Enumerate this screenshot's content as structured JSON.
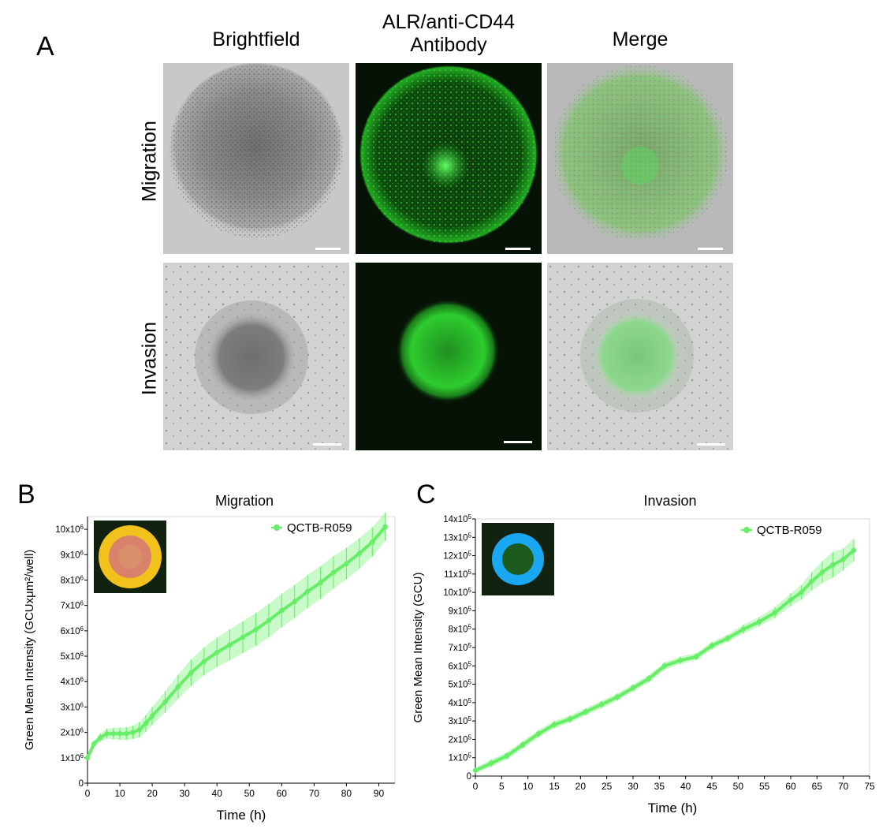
{
  "panel_a": {
    "letter": "A",
    "columns": [
      "Brightfield",
      "ALR/anti-CD44\nAntibody",
      "Merge"
    ],
    "rows": [
      "Migration",
      "Invasion"
    ]
  },
  "colors": {
    "series": "#66ee66",
    "series_dark": "#44dd44",
    "fluor": "#22dd22",
    "brightfield_bg": "#c8c8c8",
    "dark_bg": "#061206",
    "heat_outer": "#f1c21b",
    "heat_inner": "#d9826b",
    "invasion_mask": "#1aa7f2"
  },
  "chart_data": [
    {
      "panel_letter": "B",
      "type": "line",
      "title": "Migration",
      "xlabel": "Time (h)",
      "ylabel": "Green Mean Intensity (GCUxμm²/well)",
      "xlim": [
        0,
        95
      ],
      "ylim": [
        0,
        10500000
      ],
      "x_ticks": [
        0,
        10,
        20,
        30,
        40,
        50,
        60,
        70,
        80,
        90
      ],
      "y_ticks": [
        {
          "v": 0,
          "label": "0"
        },
        {
          "v": 1000000,
          "label": "1x10^6"
        },
        {
          "v": 2000000,
          "label": "2x10^6"
        },
        {
          "v": 3000000,
          "label": "3x10^6"
        },
        {
          "v": 4000000,
          "label": "4x10^6"
        },
        {
          "v": 5000000,
          "label": "5x10^6"
        },
        {
          "v": 6000000,
          "label": "6x10^6"
        },
        {
          "v": 7000000,
          "label": "7x10^6"
        },
        {
          "v": 8000000,
          "label": "8x10^6"
        },
        {
          "v": 9000000,
          "label": "9x10^6"
        },
        {
          "v": 10000000,
          "label": "10x10^6"
        }
      ],
      "legend": "top-right",
      "grid": false,
      "inset": "heatmap",
      "series": [
        {
          "name": "QCTB-R059",
          "x": [
            0,
            2,
            4,
            6,
            8,
            10,
            12,
            14,
            16,
            18,
            20,
            24,
            28,
            32,
            36,
            40,
            44,
            48,
            52,
            56,
            60,
            64,
            68,
            72,
            76,
            80,
            84,
            88,
            92
          ],
          "y": [
            1000000,
            1550000,
            1800000,
            1950000,
            1950000,
            1950000,
            1950000,
            2000000,
            2100000,
            2350000,
            2650000,
            3200000,
            3800000,
            4350000,
            4800000,
            5150000,
            5450000,
            5750000,
            6050000,
            6400000,
            6800000,
            7150000,
            7550000,
            7900000,
            8300000,
            8650000,
            9050000,
            9500000,
            10100000
          ],
          "err": [
            50000,
            120000,
            160000,
            200000,
            220000,
            240000,
            250000,
            260000,
            300000,
            330000,
            360000,
            420000,
            480000,
            520000,
            550000,
            580000,
            610000,
            630000,
            650000,
            660000,
            660000,
            650000,
            650000,
            650000,
            640000,
            620000,
            600000,
            580000,
            560000
          ]
        }
      ]
    },
    {
      "panel_letter": "C",
      "type": "line",
      "title": "Invasion",
      "xlabel": "Time (h)",
      "ylabel": "Green Mean Intensity (GCU)",
      "xlim": [
        0,
        75
      ],
      "ylim": [
        0,
        1400000
      ],
      "x_ticks": [
        0,
        5,
        10,
        15,
        20,
        25,
        30,
        35,
        40,
        45,
        50,
        55,
        60,
        65,
        70,
        75
      ],
      "y_ticks": [
        {
          "v": 0,
          "label": "0"
        },
        {
          "v": 100000,
          "label": "1x10^5"
        },
        {
          "v": 200000,
          "label": "2x10^5"
        },
        {
          "v": 300000,
          "label": "3x10^5"
        },
        {
          "v": 400000,
          "label": "4x10^5"
        },
        {
          "v": 500000,
          "label": "5x10^5"
        },
        {
          "v": 600000,
          "label": "6x10^5"
        },
        {
          "v": 700000,
          "label": "7x10^5"
        },
        {
          "v": 800000,
          "label": "8x10^5"
        },
        {
          "v": 900000,
          "label": "9x10^5"
        },
        {
          "v": 1000000,
          "label": "10x10^5"
        },
        {
          "v": 1100000,
          "label": "11x10^5"
        },
        {
          "v": 1200000,
          "label": "12x10^5"
        },
        {
          "v": 1300000,
          "label": "13x10^5"
        },
        {
          "v": 1400000,
          "label": "14x10^5"
        }
      ],
      "legend": "top-right",
      "grid": false,
      "inset": "mask",
      "series": [
        {
          "name": "QCTB-R059",
          "x": [
            0,
            3,
            6,
            9,
            12,
            15,
            18,
            21,
            24,
            27,
            30,
            33,
            36,
            39,
            42,
            45,
            48,
            51,
            54,
            57,
            60,
            62,
            64,
            66,
            68,
            70,
            72
          ],
          "y": [
            30000,
            70000,
            110000,
            170000,
            230000,
            280000,
            310000,
            350000,
            390000,
            430000,
            480000,
            530000,
            600000,
            630000,
            650000,
            710000,
            750000,
            800000,
            840000,
            890000,
            960000,
            1000000,
            1060000,
            1110000,
            1150000,
            1180000,
            1230000
          ],
          "err": [
            15000,
            20000,
            20000,
            20000,
            20000,
            20000,
            20000,
            20000,
            20000,
            20000,
            20000,
            20000,
            20000,
            20000,
            20000,
            20000,
            20000,
            25000,
            25000,
            30000,
            35000,
            40000,
            50000,
            60000,
            70000,
            60000,
            60000
          ]
        }
      ]
    }
  ]
}
